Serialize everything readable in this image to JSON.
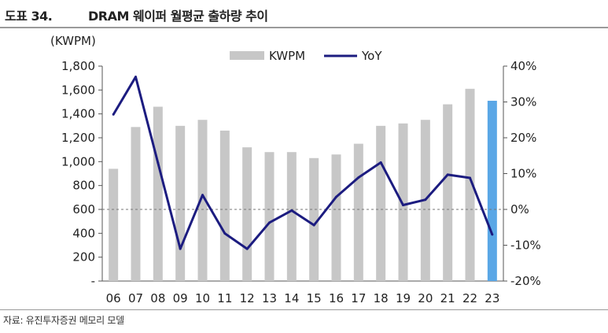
{
  "header": {
    "label": "도표 34.",
    "title": "DRAM 웨이퍼 월평균 출하량 추이"
  },
  "source": "자료: 유진투자증권 메모리 모델",
  "chart_data": {
    "type": "bar+line",
    "title": "DRAM 웨이퍼 월평균 출하량 추이",
    "unit_label": "(KWPM)",
    "categories": [
      "06",
      "07",
      "08",
      "09",
      "10",
      "11",
      "12",
      "13",
      "14",
      "15",
      "16",
      "17",
      "18",
      "19",
      "20",
      "21",
      "22",
      "23"
    ],
    "series": [
      {
        "name": "KWPM",
        "type": "bar",
        "axis": "left",
        "values": [
          940,
          1290,
          1460,
          1300,
          1350,
          1260,
          1120,
          1080,
          1080,
          1030,
          1060,
          1150,
          1300,
          1320,
          1350,
          1480,
          1610,
          1510
        ],
        "color": "#c7c7c7",
        "highlight_index": 17,
        "highlight_color": "#5aa7e6"
      },
      {
        "name": "YoY",
        "type": "line",
        "axis": "right",
        "values": [
          26.5,
          37.0,
          13.0,
          -11.0,
          4.0,
          -6.7,
          -11.0,
          -3.7,
          -0.3,
          -4.4,
          3.5,
          8.9,
          13.1,
          1.2,
          2.7,
          9.7,
          8.8,
          -7.0
        ],
        "color": "#1c1c80"
      }
    ],
    "y_left": {
      "min": 0,
      "max": 1800,
      "ticks": [
        "-",
        "200",
        "400",
        "600",
        "800",
        "1,000",
        "1,200",
        "1,400",
        "1,600",
        "1,800"
      ]
    },
    "y_right": {
      "min": -20,
      "max": 40,
      "ticks": [
        "-20%",
        "-10%",
        "0%",
        "10%",
        "20%",
        "30%",
        "40%"
      ]
    },
    "zero_line": "dashed at 0% YoY",
    "legend": {
      "position": "top-center",
      "items": [
        "KWPM",
        "YoY"
      ]
    }
  }
}
